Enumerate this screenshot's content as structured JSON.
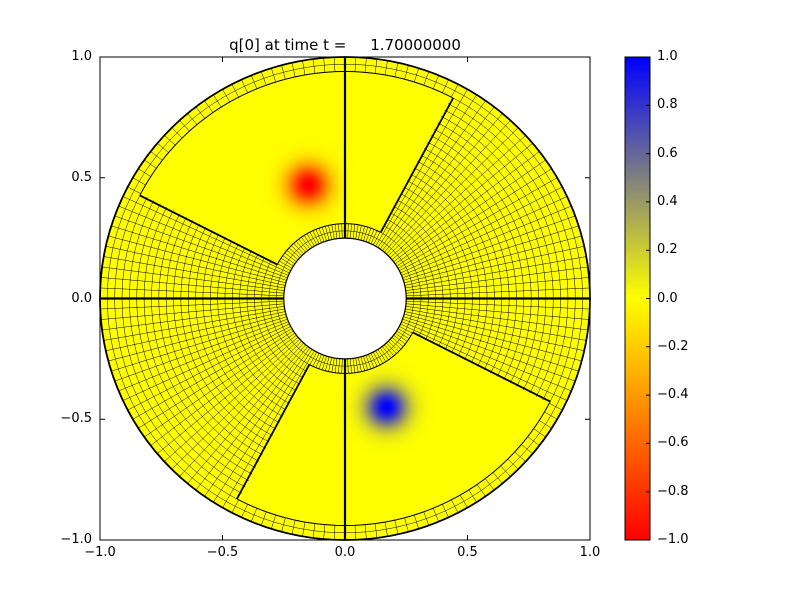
{
  "figure": {
    "background_color": "#ffffff"
  },
  "chart_data": {
    "type": "heatmap",
    "title": "q[0] at time t =     1.70000000",
    "xlim": [
      -1.0,
      1.0
    ],
    "ylim": [
      -1.0,
      1.0
    ],
    "xtick_values": [
      -1.0,
      -0.5,
      0.0,
      0.5,
      1.0
    ],
    "xtick_labels": [
      "−1.0",
      "−0.5",
      "0.0",
      "0.5",
      "1.0"
    ],
    "ytick_values": [
      1.0,
      0.5,
      0.0,
      -0.5,
      -1.0
    ],
    "ytick_labels": [
      "1.0",
      "0.5",
      "0.0",
      "−0.5",
      "−1.0"
    ],
    "grid": false,
    "annulus": {
      "inner_radius": 0.25,
      "outer_radius": 1.0
    },
    "field": {
      "background_value": 0.0,
      "blobs": [
        {
          "x": -0.15,
          "y": 0.47,
          "amplitude": -1.0,
          "sigma": 0.06
        },
        {
          "x": 0.17,
          "y": -0.45,
          "amplitude": 1.0,
          "sigma": 0.06
        }
      ]
    },
    "colormap_stops": [
      {
        "value": -1.0,
        "color": "#ff0000"
      },
      {
        "value": 0.0,
        "color": "#ffff00"
      },
      {
        "value": 1.0,
        "color": "#0000ff"
      }
    ],
    "colorbar": {
      "vmin": -1.0,
      "vmax": 1.0,
      "tick_values": [
        1.0,
        0.8,
        0.6,
        0.4,
        0.2,
        0.0,
        -0.2,
        -0.4,
        -0.6,
        -0.8,
        -1.0
      ],
      "tick_labels": [
        "1.0",
        "0.8",
        "0.6",
        "0.4",
        "0.2",
        "0.0",
        "−0.2",
        "−0.4",
        "−0.6",
        "−0.8",
        "−1.0"
      ]
    },
    "mesh": {
      "angular_divisions": 144,
      "radial_divisions": 25,
      "line_color": "#000000",
      "smooth_patches": [
        {
          "theta_start_deg": 62,
          "theta_end_deg": 153,
          "r_inner": 0.31,
          "r_outer": 0.94
        },
        {
          "theta_start_deg": 242,
          "theta_end_deg": 333,
          "r_inner": 0.31,
          "r_outer": 0.94
        }
      ]
    },
    "spokes_deg": [
      0,
      90,
      180,
      270
    ]
  }
}
